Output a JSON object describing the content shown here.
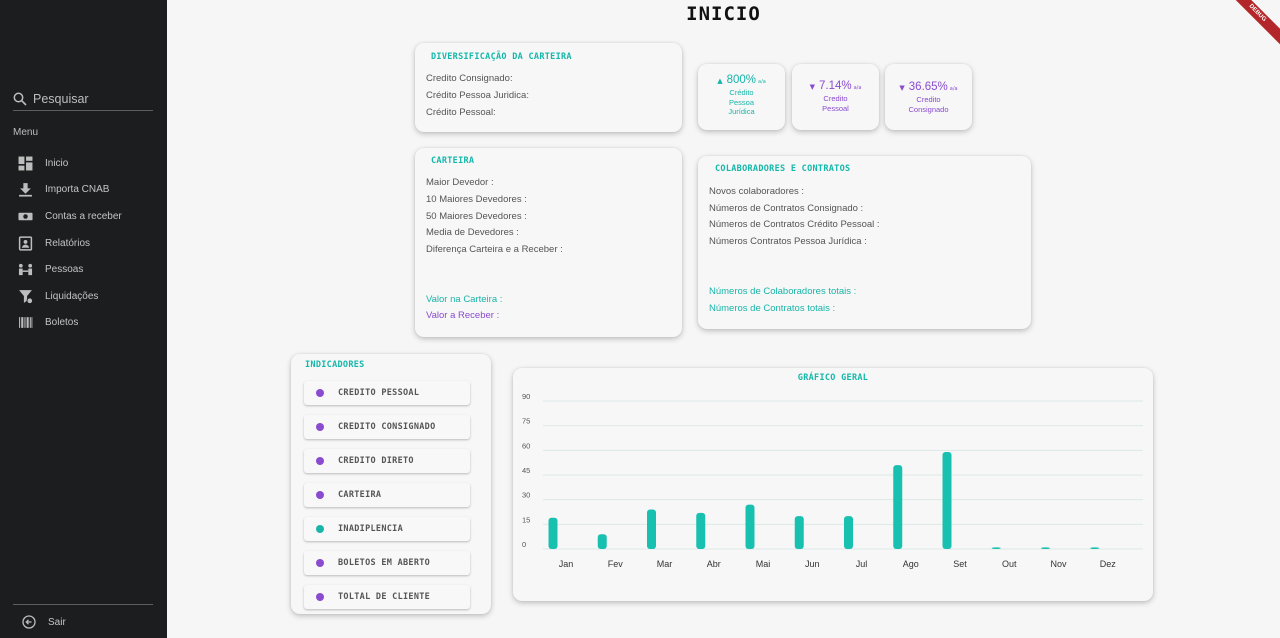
{
  "page": {
    "title": "INICIO",
    "debug_badge": "DEBUG"
  },
  "sidebar": {
    "search_placeholder": "Pesquisar",
    "menu_title": "Menu",
    "items": [
      {
        "label": "Inicio",
        "icon": "dashboard-icon"
      },
      {
        "label": "Importa CNAB",
        "icon": "download-icon"
      },
      {
        "label": "Contas a receber",
        "icon": "money-icon"
      },
      {
        "label": "Relatórios",
        "icon": "report-icon"
      },
      {
        "label": "Pessoas",
        "icon": "people-icon"
      },
      {
        "label": "Liquidações",
        "icon": "liquidation-icon"
      },
      {
        "label": "Boletos",
        "icon": "barcode-icon"
      }
    ],
    "logout_label": "Sair"
  },
  "diversificacao": {
    "title": "DIVERSIFICAÇÃO DA CARTEIRA",
    "lines": [
      "Credito Consignado:",
      "Crédito Pessoa Juridica:",
      "Crédito Pessoal:"
    ]
  },
  "stats": [
    {
      "value": "800%",
      "unit": "a/a",
      "label_lines": [
        "Crédito",
        "Pessoa",
        "Jurídica"
      ],
      "direction": "up",
      "color": "#18b5a8"
    },
    {
      "value": "7.14%",
      "unit": "a/a",
      "label_lines": [
        "Credito",
        "Pessoal"
      ],
      "direction": "down",
      "color": "#8a4bd1"
    },
    {
      "value": "36.65%",
      "unit": "a/a",
      "label_lines": [
        "Credito",
        "Consignado"
      ],
      "direction": "down",
      "color": "#8a4bd1"
    }
  ],
  "carteira": {
    "title": "CARTEIRA",
    "lines": [
      "Maior Devedor :",
      "10 Maiores Devedores :",
      "50 Maiores Devedores :",
      "Media de Devedores :",
      "Diferença Carteira e a Receber :"
    ],
    "valor_carteira": "Valor na Carteira :",
    "valor_receber": "Valor a Receber :"
  },
  "colaboradores": {
    "title": "COLABORADORES E CONTRATOS",
    "lines": [
      "Novos colaboradores :",
      "Números de Contratos Consignado :",
      "Números de Contratos Crédito Pessoal :",
      "Números Contratos Pessoa Jurídica :"
    ],
    "total_colaboradores": "Números de Colaboradores totais :",
    "total_contratos": "Números de Contratos totais :"
  },
  "indicadores": {
    "title": "INDICADORES",
    "items": [
      {
        "label": "CREDITO PESSOAL",
        "color": "#8a4bd1"
      },
      {
        "label": "CREDITO CONSIGNADO",
        "color": "#8a4bd1"
      },
      {
        "label": "CREDITO DIRETO",
        "color": "#8a4bd1"
      },
      {
        "label": "CARTEIRA",
        "color": "#8a4bd1"
      },
      {
        "label": "INADIPLENCIA",
        "color": "#18b5a8"
      },
      {
        "label": "BOLETOS EM ABERTO",
        "color": "#8a4bd1"
      },
      {
        "label": "TOLTAL DE CLIENTE",
        "color": "#8a4bd1"
      }
    ]
  },
  "chart_data": {
    "type": "bar",
    "title": "GRÁFICO GERAL",
    "categories": [
      "Jan",
      "Fev",
      "Mar",
      "Abr",
      "Mai",
      "Jun",
      "Jul",
      "Ago",
      "Set",
      "Out",
      "Nov",
      "Dez"
    ],
    "values": [
      19,
      9,
      24,
      22,
      27,
      20,
      20,
      51,
      59,
      1,
      1,
      1
    ],
    "yticks": [
      0,
      15,
      30,
      45,
      60,
      75,
      90
    ],
    "ylim": [
      0,
      90
    ],
    "grid": true,
    "bar_color": "#18c0b0"
  }
}
